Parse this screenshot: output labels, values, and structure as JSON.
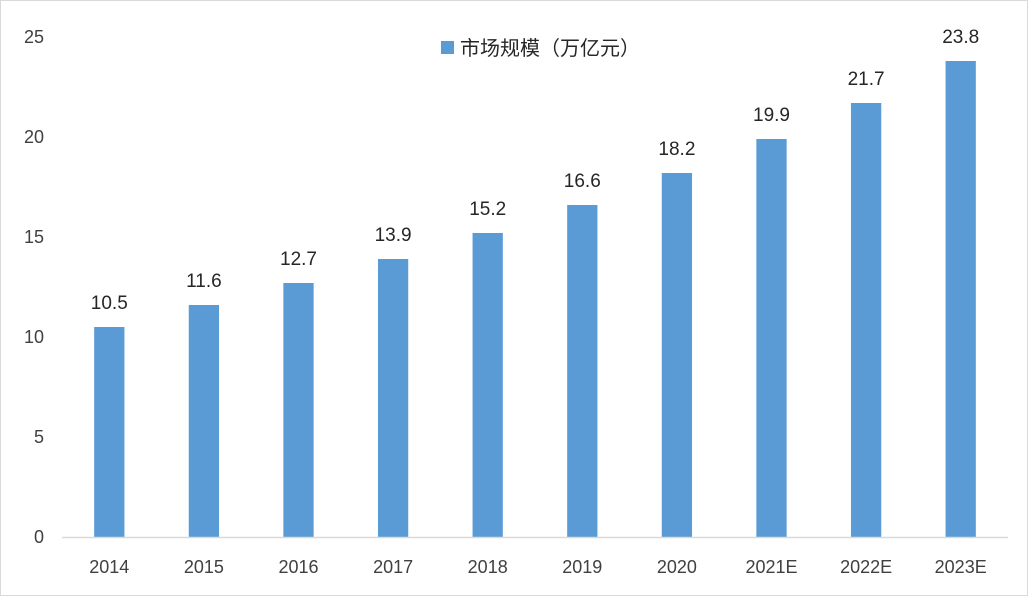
{
  "chart_data": {
    "type": "bar",
    "categories": [
      "2014",
      "2015",
      "2016",
      "2017",
      "2018",
      "2019",
      "2020",
      "2021E",
      "2022E",
      "2023E"
    ],
    "series": [
      {
        "name": "市场规模（万亿元）",
        "values": [
          10.5,
          11.6,
          12.7,
          13.9,
          15.2,
          16.6,
          18.2,
          19.9,
          21.7,
          23.8
        ],
        "labels": [
          "10.5",
          "11.6",
          "12.7",
          "13.9",
          "15.2",
          "16.6",
          "18.2",
          "19.9",
          "21.7",
          "23.8"
        ]
      }
    ],
    "ylim": [
      0,
      25
    ],
    "yticks": [
      "0",
      "5",
      "10",
      "15",
      "20",
      "25"
    ],
    "grid": false,
    "legend": "top-center",
    "bar_color": "#5B9BD5"
  }
}
